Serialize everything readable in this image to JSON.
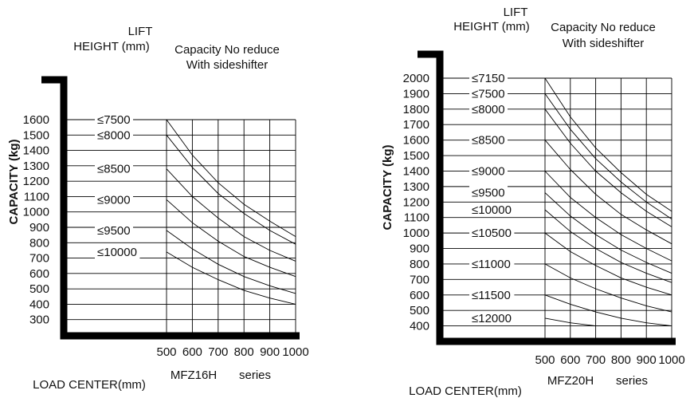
{
  "chart_data": [
    {
      "type": "line",
      "model": "MFZ16H",
      "series_suffix": "series",
      "header_lift": "LIFT",
      "header_height": "HEIGHT (mm)",
      "header_cap1": "Capacity No reduce",
      "header_cap2": "With sideshifter",
      "ylabel": "CAPACITY (kg)",
      "xlabel": "LOAD CENTER(mm)",
      "x_ticks": [
        500,
        600,
        700,
        800,
        900,
        1000
      ],
      "y_ticks": [
        300,
        400,
        500,
        600,
        700,
        800,
        900,
        1000,
        1100,
        1200,
        1300,
        1400,
        1500,
        1600
      ],
      "xlim": [
        500,
        1000
      ],
      "ylim": [
        300,
        1600
      ],
      "series": [
        {
          "name": "≤7500",
          "x": [
            500,
            600,
            700,
            800,
            900,
            1000
          ],
          "y": [
            1600,
            1370,
            1190,
            1050,
            940,
            840
          ]
        },
        {
          "name": "≤8000",
          "x": [
            500,
            600,
            700,
            800,
            900,
            1000
          ],
          "y": [
            1500,
            1290,
            1120,
            990,
            880,
            790
          ]
        },
        {
          "name": "≤8500",
          "x": [
            500,
            600,
            700,
            800,
            900,
            1000
          ],
          "y": [
            1280,
            1100,
            960,
            840,
            750,
            680
          ]
        },
        {
          "name": "≤9000",
          "x": [
            500,
            600,
            700,
            800,
            900,
            1000
          ],
          "y": [
            1080,
            930,
            810,
            710,
            640,
            580
          ]
        },
        {
          "name": "≤9500",
          "x": [
            500,
            600,
            700,
            800,
            900,
            1000
          ],
          "y": [
            880,
            760,
            660,
            580,
            520,
            470
          ]
        },
        {
          "name": "≤10000",
          "x": [
            500,
            600,
            700,
            800,
            900,
            1000
          ],
          "y": [
            740,
            640,
            560,
            490,
            440,
            400
          ]
        }
      ]
    },
    {
      "type": "line",
      "model": "MFZ20H",
      "series_suffix": "series",
      "header_lift": "LIFT",
      "header_height": "HEIGHT (mm)",
      "header_cap1": "Capacity No reduce",
      "header_cap2": "With sideshifter",
      "ylabel": "CAPACITY (kg)",
      "xlabel": "LOAD CENTER(mm)",
      "x_ticks": [
        500,
        600,
        700,
        800,
        900,
        1000
      ],
      "y_ticks": [
        400,
        500,
        600,
        700,
        800,
        900,
        1000,
        1100,
        1200,
        1300,
        1400,
        1500,
        1600,
        1700,
        1800,
        1900,
        2000
      ],
      "xlim": [
        500,
        1000
      ],
      "ylim": [
        400,
        2000
      ],
      "series": [
        {
          "name": "≤7150",
          "x": [
            500,
            600,
            700,
            800,
            900,
            1000
          ],
          "y": [
            2000,
            1750,
            1550,
            1390,
            1250,
            1140
          ]
        },
        {
          "name": "≤7500",
          "x": [
            500,
            600,
            700,
            800,
            900,
            1000
          ],
          "y": [
            1900,
            1670,
            1480,
            1330,
            1200,
            1090
          ]
        },
        {
          "name": "≤8000",
          "x": [
            500,
            600,
            700,
            800,
            900,
            1000
          ],
          "y": [
            1800,
            1580,
            1400,
            1260,
            1140,
            1040
          ]
        },
        {
          "name": "≤8500",
          "x": [
            500,
            600,
            700,
            800,
            900,
            1000
          ],
          "y": [
            1600,
            1410,
            1250,
            1120,
            1020,
            930
          ]
        },
        {
          "name": "≤9000",
          "x": [
            500,
            600,
            700,
            800,
            900,
            1000
          ],
          "y": [
            1400,
            1230,
            1100,
            990,
            900,
            820
          ]
        },
        {
          "name": "≤9500",
          "x": [
            500,
            600,
            700,
            800,
            900,
            1000
          ],
          "y": [
            1260,
            1110,
            990,
            890,
            810,
            740
          ]
        },
        {
          "name": "≤10000",
          "x": [
            500,
            600,
            700,
            800,
            900,
            1000
          ],
          "y": [
            1150,
            1010,
            900,
            810,
            740,
            680
          ]
        },
        {
          "name": "≤10500",
          "x": [
            500,
            600,
            700,
            800,
            900,
            1000
          ],
          "y": [
            1000,
            880,
            790,
            710,
            650,
            600
          ]
        },
        {
          "name": "≤11000",
          "x": [
            500,
            600,
            700,
            800,
            900,
            1000
          ],
          "y": [
            800,
            710,
            640,
            580,
            530,
            490
          ]
        },
        {
          "name": "≤11500",
          "x": [
            500,
            600,
            700,
            800,
            900,
            1000
          ],
          "y": [
            600,
            540,
            490,
            450,
            420,
            400
          ]
        },
        {
          "name": "≤12000",
          "x": [
            500,
            600,
            700,
            800,
            900,
            1000
          ],
          "y": [
            450,
            420,
            400,
            400,
            400,
            400
          ]
        }
      ]
    }
  ]
}
